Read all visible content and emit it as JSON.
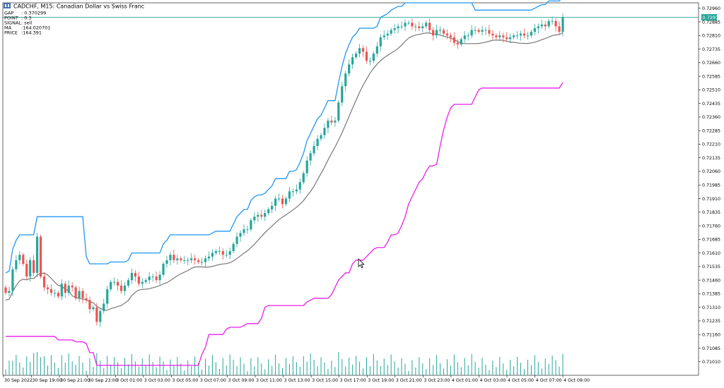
{
  "window": {
    "symbol_title": "CADCHF, M15:  Canadian Dollar vs Swiss Franc"
  },
  "info_panel": [
    {
      "label": "GAP",
      "value": ": 0.370299"
    },
    {
      "label": "POINT",
      "value": ": 0.3"
    },
    {
      "label": "SIGNAL",
      "value": ": sell"
    },
    {
      "label": "MA",
      "value": ":164.020701"
    },
    {
      "label": "PRICE",
      "value": ":164.391"
    }
  ],
  "colors": {
    "bull": "#26a69a",
    "bear": "#ef5350",
    "upper_band": "#2196f3",
    "middle_line": "#787878",
    "lower_band": "#e91ee8",
    "price_line": "#26a69a",
    "volume": "#26a69a",
    "grid": "#e6e6e6",
    "axis": "#000000"
  },
  "chart_data": {
    "type": "candlestick",
    "symbol": "CADCHF",
    "timeframe": "M15",
    "ylim": [
      0.70935,
      0.7299
    ],
    "y_ticks": [
      "0.72960",
      "0.72885",
      "0.72810",
      "0.72735",
      "0.72660",
      "0.72585",
      "0.72510",
      "0.72435",
      "0.72360",
      "0.72285",
      "0.72210",
      "0.72135",
      "0.72060",
      "0.71985",
      "0.71910",
      "0.71835",
      "0.71760",
      "0.71685",
      "0.71610",
      "0.71535",
      "0.71460",
      "0.71385",
      "0.71310",
      "0.71235",
      "0.71160",
      "0.71085",
      "0.71010"
    ],
    "x_ticks": [
      "30 Sep 2022",
      "30 Sep 19:00",
      "30 Sep 21:00",
      "30 Sep 23:00",
      "3 Oct 01:00",
      "3 Oct 03:00",
      "3 Oct 05:00",
      "3 Oct 07:00",
      "3 Oct 09:00",
      "3 Oct 11:00",
      "3 Oct 13:00",
      "3 Oct 15:00",
      "3 Oct 17:00",
      "3 Oct 19:00",
      "3 Oct 21:00",
      "3 Oct 23:00",
      "4 Oct 01:00",
      "4 Oct 03:00",
      "4 Oct 05:00",
      "4 Oct 07:00",
      "4 Oct 09:00"
    ],
    "current_price": "0.72910",
    "bar_count": 160,
    "candles_close": [
      0.7139,
      0.714,
      0.7152,
      0.7157,
      0.716,
      0.7155,
      0.7148,
      0.7157,
      0.715,
      0.717,
      0.7148,
      0.7142,
      0.7141,
      0.7139,
      0.7139,
      0.7137,
      0.7144,
      0.7139,
      0.7143,
      0.7142,
      0.7136,
      0.714,
      0.7136,
      0.7135,
      0.713,
      0.7131,
      0.7123,
      0.7129,
      0.7133,
      0.7141,
      0.7145,
      0.7145,
      0.7143,
      0.714,
      0.7143,
      0.7146,
      0.715,
      0.7148,
      0.7144,
      0.7145,
      0.7146,
      0.7148,
      0.7148,
      0.7146,
      0.7149,
      0.7155,
      0.7157,
      0.716,
      0.7157,
      0.7158,
      0.7157,
      0.7157,
      0.7157,
      0.7158,
      0.7157,
      0.7156,
      0.7156,
      0.7158,
      0.7159,
      0.7161,
      0.7162,
      0.7162,
      0.716,
      0.716,
      0.7162,
      0.7166,
      0.717,
      0.7172,
      0.7174,
      0.7174,
      0.7179,
      0.7181,
      0.7182,
      0.7181,
      0.7183,
      0.7185,
      0.7187,
      0.7191,
      0.7191,
      0.7188,
      0.7191,
      0.7195,
      0.7195,
      0.7196,
      0.72,
      0.7205,
      0.7212,
      0.7216,
      0.722,
      0.7224,
      0.7226,
      0.723,
      0.7234,
      0.7233,
      0.7234,
      0.7244,
      0.7253,
      0.726,
      0.7265,
      0.7269,
      0.7271,
      0.7274,
      0.7272,
      0.7267,
      0.7267,
      0.7271,
      0.7275,
      0.728,
      0.7281,
      0.7282,
      0.7284,
      0.7285,
      0.7286,
      0.7286,
      0.7288,
      0.7288,
      0.7286,
      0.7286,
      0.7285,
      0.7286,
      0.7288,
      0.7284,
      0.7281,
      0.7284,
      0.7284,
      0.7282,
      0.7281,
      0.728,
      0.7277,
      0.7276,
      0.7279,
      0.7281,
      0.7281,
      0.7284,
      0.7284,
      0.7283,
      0.7284,
      0.7284,
      0.7282,
      0.7281,
      0.728,
      0.7281,
      0.728,
      0.7279,
      0.728,
      0.7281,
      0.7281,
      0.7282,
      0.7281,
      0.7281,
      0.7283,
      0.7285,
      0.7286,
      0.7287,
      0.7286,
      0.7289,
      0.7289,
      0.7286,
      0.7283,
      0.7291
    ]
  }
}
